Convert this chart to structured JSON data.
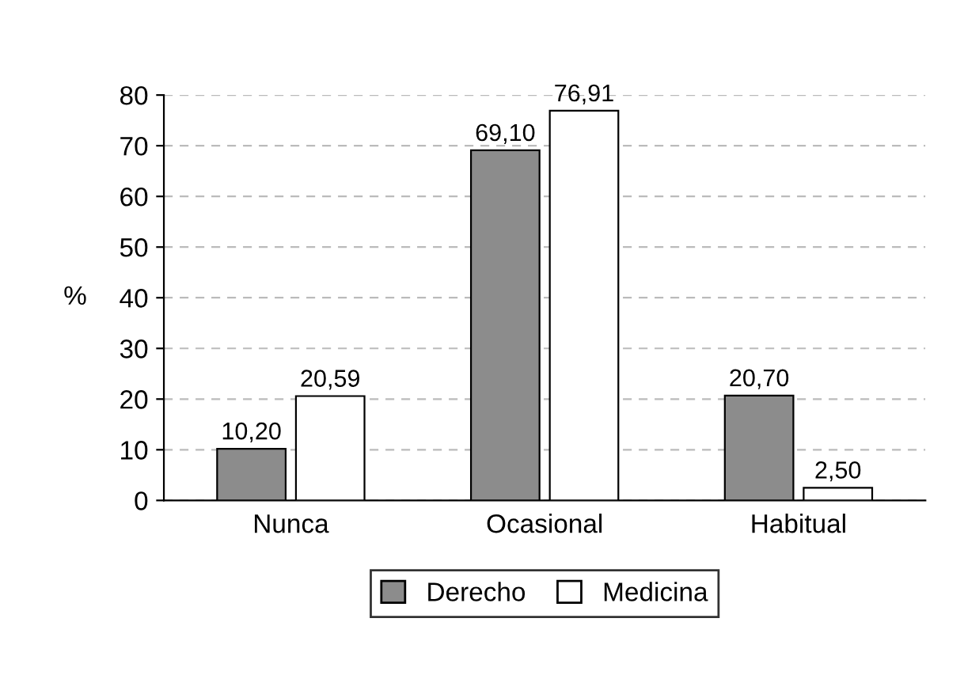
{
  "chart_data": {
    "type": "bar",
    "ylabel": "%",
    "categories": [
      "Nunca",
      "Ocasional",
      "Habitual"
    ],
    "series": [
      {
        "name": "Derecho",
        "color": "#8c8c8c",
        "values": [
          10.2,
          69.1,
          20.7
        ],
        "value_labels": [
          "10,20",
          "69,10",
          "20,70"
        ]
      },
      {
        "name": "Medicina",
        "color": "#ffffff",
        "values": [
          20.59,
          76.91,
          2.5
        ],
        "value_labels": [
          "20,59",
          "76,91",
          "2,50"
        ]
      }
    ],
    "ylim": [
      0,
      80
    ],
    "yticks": [
      0,
      10,
      20,
      30,
      40,
      50,
      60,
      70,
      80
    ],
    "grid": "y",
    "legend": "bottom"
  }
}
